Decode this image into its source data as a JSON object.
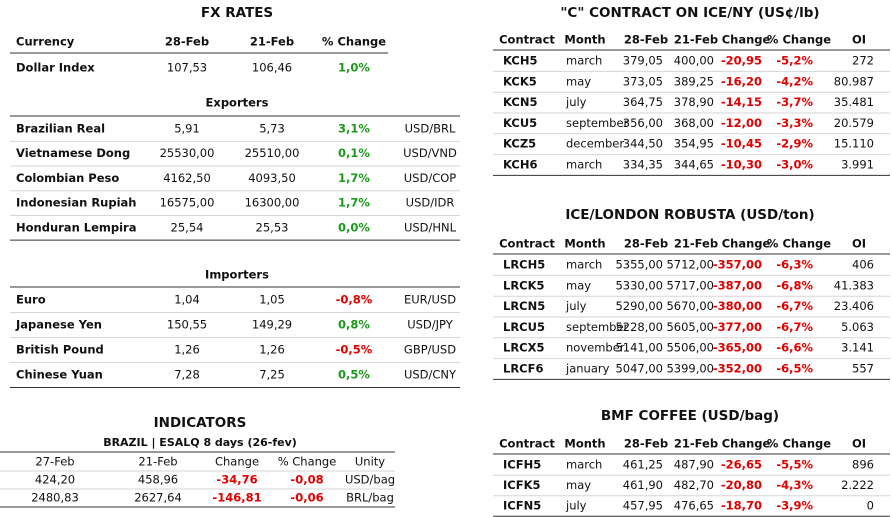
{
  "fx_rates": {
    "title": "FX RATES",
    "header": [
      "Currency",
      "28-Feb",
      "21-Feb",
      "% Change"
    ],
    "rows": [
      [
        "Dollar Index",
        "107,53",
        "106,46",
        "1,0%"
      ]
    ],
    "exporters": {
      "title": "Exporters",
      "rows": [
        [
          "Brazilian Real",
          "5,91",
          "5,73",
          "3,1%",
          "USD/BRL"
        ],
        [
          "Vietnamese Dong",
          "25530,00",
          "25510,00",
          "0,1%",
          "USD/VND"
        ],
        [
          "Colombian Peso",
          "4162,50",
          "4093,50",
          "1,7%",
          "USD/COP"
        ],
        [
          "Indonesian Rupiah",
          "16575,00",
          "16300,00",
          "1,7%",
          "USD/IDR"
        ],
        [
          "Honduran Lempira",
          "25,54",
          "25,53",
          "0,0%",
          "USD/HNL"
        ]
      ]
    },
    "importers": {
      "title": "Importers",
      "rows": [
        [
          "Euro",
          "1,04",
          "1,05",
          "-0,8%",
          "EUR/USD"
        ],
        [
          "Japanese Yen",
          "150,55",
          "149,29",
          "0,8%",
          "USD/JPY"
        ],
        [
          "British Pound",
          "1,26",
          "1,26",
          "-0,5%",
          "GBP/USD"
        ],
        [
          "Chinese Yuan",
          "7,28",
          "7,25",
          "0,5%",
          "USD/CNY"
        ]
      ]
    }
  },
  "indicators": {
    "title": "INDICATORS",
    "subtitle": "BRAZIL | ESALQ 8 days (26-fev)",
    "header": [
      "27-Feb",
      "21-Feb",
      "Change",
      "% Change",
      "Unity"
    ],
    "rows": [
      [
        "424,20",
        "458,96",
        "-34,76",
        "-0,08",
        "USD/bag"
      ],
      [
        "2480,83",
        "2627,64",
        "-146,81",
        "-0,06",
        "BRL/bag"
      ]
    ]
  },
  "c_contract": {
    "title": "\"C\" CONTRACT ON ICE/NY (US¢/lb)",
    "header": [
      "Contract",
      "Month",
      "28-Feb",
      "21-Feb",
      "Change",
      "% Change",
      "OI"
    ],
    "rows": [
      [
        "KCH5",
        "march",
        "379,05",
        "400,00",
        "-20,95",
        "-5,2%",
        "272"
      ],
      [
        "KCK5",
        "may",
        "373,05",
        "389,25",
        "-16,20",
        "-4,2%",
        "80.987"
      ],
      [
        "KCN5",
        "july",
        "364,75",
        "378,90",
        "-14,15",
        "-3,7%",
        "35.481"
      ],
      [
        "KCU5",
        "september",
        "356,00",
        "368,00",
        "-12,00",
        "-3,3%",
        "20.579"
      ],
      [
        "KCZ5",
        "december",
        "344,50",
        "354,95",
        "-10,45",
        "-2,9%",
        "15.110"
      ],
      [
        "KCH6",
        "march",
        "334,35",
        "344,65",
        "-10,30",
        "-3,0%",
        "3.991"
      ]
    ]
  },
  "robusta": {
    "title": "ICE/LONDON ROBUSTA (USD/ton)",
    "header": [
      "Contract",
      "Month",
      "28-Feb",
      "21-Feb",
      "Change",
      "% Change",
      "OI"
    ],
    "rows": [
      [
        "LRCH5",
        "march",
        "5355,00",
        "5712,00",
        "-357,00",
        "-6,3%",
        "406"
      ],
      [
        "LRCK5",
        "may",
        "5330,00",
        "5717,00",
        "-387,00",
        "-6,8%",
        "41.383"
      ],
      [
        "LRCN5",
        "july",
        "5290,00",
        "5670,00",
        "-380,00",
        "-6,7%",
        "23.406"
      ],
      [
        "LRCU5",
        "september",
        "5228,00",
        "5605,00",
        "-377,00",
        "-6,7%",
        "5.063"
      ],
      [
        "LRCX5",
        "november",
        "5141,00",
        "5506,00",
        "-365,00",
        "-6,6%",
        "3.141"
      ],
      [
        "LRCF6",
        "january",
        "5047,00",
        "5399,00",
        "-352,00",
        "-6,5%",
        "557"
      ]
    ]
  },
  "bmf": {
    "title": "BMF COFFEE (USD/bag)",
    "header": [
      "Contract",
      "Month",
      "28-Feb",
      "21-Feb",
      "Change",
      "% Change",
      "OI"
    ],
    "rows": [
      [
        "ICFH5",
        "march",
        "461,25",
        "487,90",
        "-26,65",
        "-5,5%",
        "896"
      ],
      [
        "ICFK5",
        "may",
        "461,90",
        "482,70",
        "-20,80",
        "-4,3%",
        "2.222"
      ],
      [
        "ICFN5",
        "july",
        "457,95",
        "476,65",
        "-18,70",
        "-3,9%",
        "0"
      ]
    ]
  }
}
